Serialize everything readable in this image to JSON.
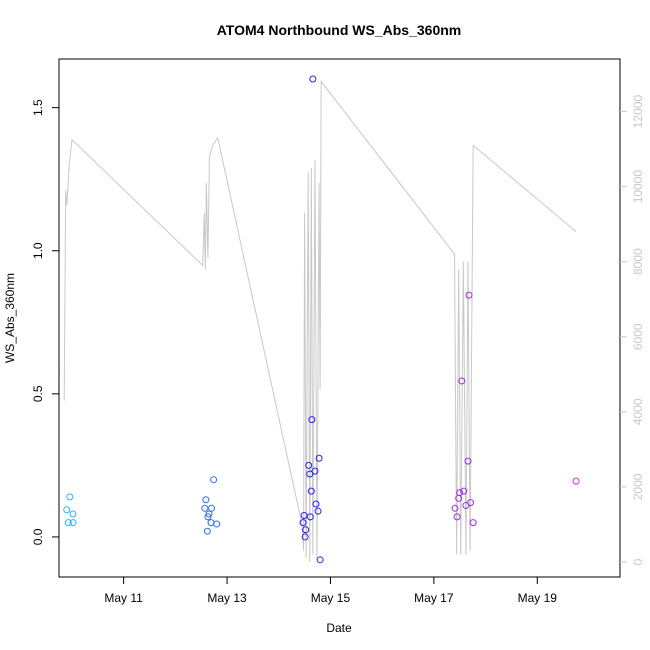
{
  "chart_data": {
    "type": "scatter",
    "title": "ATOM4 Northbound WS_Abs_360nm",
    "xlabel": "Date",
    "ylabel": "WS_Abs_360nm",
    "x_axis": {
      "unit": "days of May",
      "range": [
        9.75,
        20.6
      ],
      "ticks": [
        11,
        13,
        15,
        17,
        19
      ],
      "tick_labels": [
        "May 11",
        "May 13",
        "May 15",
        "May 17",
        "May 19"
      ]
    },
    "y_axis": {
      "range": [
        -0.14,
        1.67
      ],
      "ticks": [
        0.0,
        0.5,
        1.0,
        1.5
      ],
      "tick_labels": [
        "0.0",
        "0.5",
        "1.0",
        "1.5"
      ]
    },
    "y2_axis": {
      "range": [
        -400,
        13400
      ],
      "ticks": [
        0,
        2000,
        4000,
        6000,
        8000,
        10000,
        12000
      ],
      "tick_labels": [
        "0",
        "2000",
        "4000",
        "6000",
        "8000",
        "10000",
        "12000"
      ],
      "color": "#c8c8c8"
    },
    "grid": false,
    "series": [
      {
        "color": "#29b6f6",
        "points": [
          [
            9.9,
            0.095
          ],
          [
            9.96,
            0.14
          ],
          [
            9.93,
            0.05
          ],
          [
            10.02,
            0.05
          ],
          [
            10.02,
            0.08
          ]
        ]
      },
      {
        "color": "#2f6fe8",
        "points": [
          [
            12.57,
            0.1
          ],
          [
            12.59,
            0.13
          ],
          [
            12.63,
            0.07
          ],
          [
            12.65,
            0.08
          ],
          [
            12.62,
            0.02
          ],
          [
            12.69,
            0.05
          ],
          [
            12.7,
            0.1
          ],
          [
            12.74,
            0.2
          ],
          [
            12.8,
            0.045
          ]
        ]
      },
      {
        "color": "#2a22e6",
        "points": [
          [
            14.47,
            0.05
          ],
          [
            14.49,
            0.075
          ],
          [
            14.52,
            0.025
          ],
          [
            14.51,
            0.0
          ],
          [
            14.58,
            0.25
          ],
          [
            14.6,
            0.22
          ],
          [
            14.61,
            0.07
          ],
          [
            14.63,
            0.16
          ],
          [
            14.64,
            0.41
          ],
          [
            14.66,
            1.6
          ],
          [
            14.7,
            0.23
          ],
          [
            14.72,
            0.115
          ],
          [
            14.76,
            0.09
          ],
          [
            14.78,
            0.275
          ],
          [
            14.8,
            -0.08
          ]
        ]
      },
      {
        "color": "#9b2ee0",
        "points": [
          [
            17.41,
            0.1
          ],
          [
            17.45,
            0.07
          ],
          [
            17.48,
            0.135
          ],
          [
            17.5,
            0.155
          ],
          [
            17.54,
            0.545
          ],
          [
            17.58,
            0.16
          ],
          [
            17.62,
            0.11
          ],
          [
            17.66,
            0.265
          ],
          [
            17.68,
            0.845
          ],
          [
            17.71,
            0.12
          ],
          [
            17.76,
            0.05
          ]
        ]
      },
      {
        "color": "#d62ad6",
        "points": [
          [
            19.75,
            0.195
          ]
        ]
      }
    ],
    "line_series": {
      "axis": "y2",
      "color": "#c8c8c8",
      "points": [
        [
          9.85,
          4300
        ],
        [
          9.88,
          9900
        ],
        [
          9.9,
          9500
        ],
        [
          9.95,
          10600
        ],
        [
          10.0,
          11250
        ],
        [
          12.53,
          7900
        ],
        [
          12.56,
          9300
        ],
        [
          12.58,
          7800
        ],
        [
          12.6,
          10100
        ],
        [
          12.63,
          8100
        ],
        [
          12.66,
          10800
        ],
        [
          12.72,
          11100
        ],
        [
          12.82,
          11300
        ],
        [
          14.45,
          1000
        ],
        [
          14.48,
          300
        ],
        [
          14.5,
          9300
        ],
        [
          14.53,
          100
        ],
        [
          14.57,
          10400
        ],
        [
          14.6,
          0
        ],
        [
          14.63,
          10500
        ],
        [
          14.66,
          200
        ],
        [
          14.7,
          10700
        ],
        [
          14.74,
          100
        ],
        [
          14.78,
          10100
        ],
        [
          14.8,
          4600
        ],
        [
          14.82,
          12800
        ],
        [
          17.4,
          8200
        ],
        [
          17.44,
          200
        ],
        [
          17.48,
          7800
        ],
        [
          17.52,
          200
        ],
        [
          17.57,
          8000
        ],
        [
          17.62,
          200
        ],
        [
          17.66,
          8000
        ],
        [
          17.7,
          300
        ],
        [
          17.76,
          11100
        ],
        [
          19.75,
          8800
        ]
      ]
    }
  }
}
